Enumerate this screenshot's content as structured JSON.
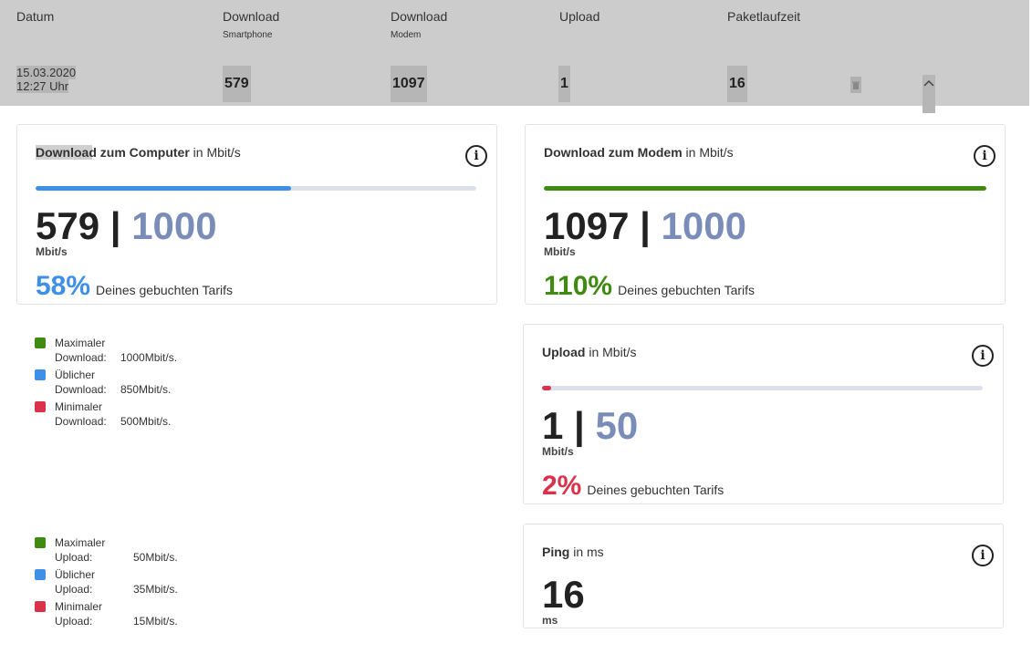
{
  "header": {
    "columns": [
      {
        "title": "Datum",
        "sub": ""
      },
      {
        "title": "Download",
        "sub": "Smartphone"
      },
      {
        "title": "Download",
        "sub": "Modem"
      },
      {
        "title": "Upload",
        "sub": ""
      },
      {
        "title": "Paketlaufzeit",
        "sub": ""
      }
    ]
  },
  "row": {
    "date": "15.03.2020",
    "time": "12:27 Uhr",
    "download_smartphone": "579",
    "download_modem": "1097",
    "upload": "1",
    "ping": "16"
  },
  "cards": {
    "computer": {
      "title_bold": "Download zum Computer",
      "title_unit": " in Mbit/s",
      "value": "579",
      "separator": "|",
      "max": "1000",
      "unit": "Mbit/s",
      "percent": "58%",
      "percent_value": 0.58,
      "desc": "Deines gebuchten Tarifs",
      "color": "#3d8fe8"
    },
    "modem": {
      "title_bold": "Download zum Modem",
      "title_unit": " in Mbit/s",
      "value": "1097",
      "separator": "|",
      "max": "1000",
      "unit": "Mbit/s",
      "percent": "110%",
      "percent_value": 1.0,
      "desc": "Deines gebuchten Tarifs",
      "color": "#3f8a10"
    },
    "upload": {
      "title_bold": "Upload",
      "title_unit": " in Mbit/s",
      "value": "1",
      "separator": "|",
      "max": "50",
      "unit": "Mbit/s",
      "percent": "2%",
      "percent_value": 0.02,
      "desc": "Deines gebuchten Tarifs",
      "color": "#d9324a"
    },
    "ping": {
      "title_bold": "Ping",
      "title_unit": " in ms",
      "value": "16",
      "unit": "ms"
    }
  },
  "legend_download": [
    {
      "line1": "Maximaler",
      "key": "Download:",
      "value": "1000Mbit/s.",
      "color": "#3f8a10"
    },
    {
      "line1": "Üblicher",
      "key": "Download:",
      "value": "850Mbit/s.",
      "color": "#3d8fe8"
    },
    {
      "line1": "Minimaler",
      "key": "Download:",
      "value": "500Mbit/s.",
      "color": "#d9324a"
    }
  ],
  "legend_upload": [
    {
      "line1": "Maximaler",
      "key": "Upload:",
      "value": "50Mbit/s.",
      "color": "#3f8a10"
    },
    {
      "line1": "Üblicher",
      "key": "Upload:",
      "value": "35Mbit/s.",
      "color": "#3d8fe8"
    },
    {
      "line1": "Minimaler",
      "key": "Upload:",
      "value": "15Mbit/s.",
      "color": "#d9324a"
    }
  ],
  "icons": {
    "info": "info-icon",
    "delete": "trash-icon",
    "collapse": "chevron-up-icon"
  },
  "info_glyph": "i"
}
